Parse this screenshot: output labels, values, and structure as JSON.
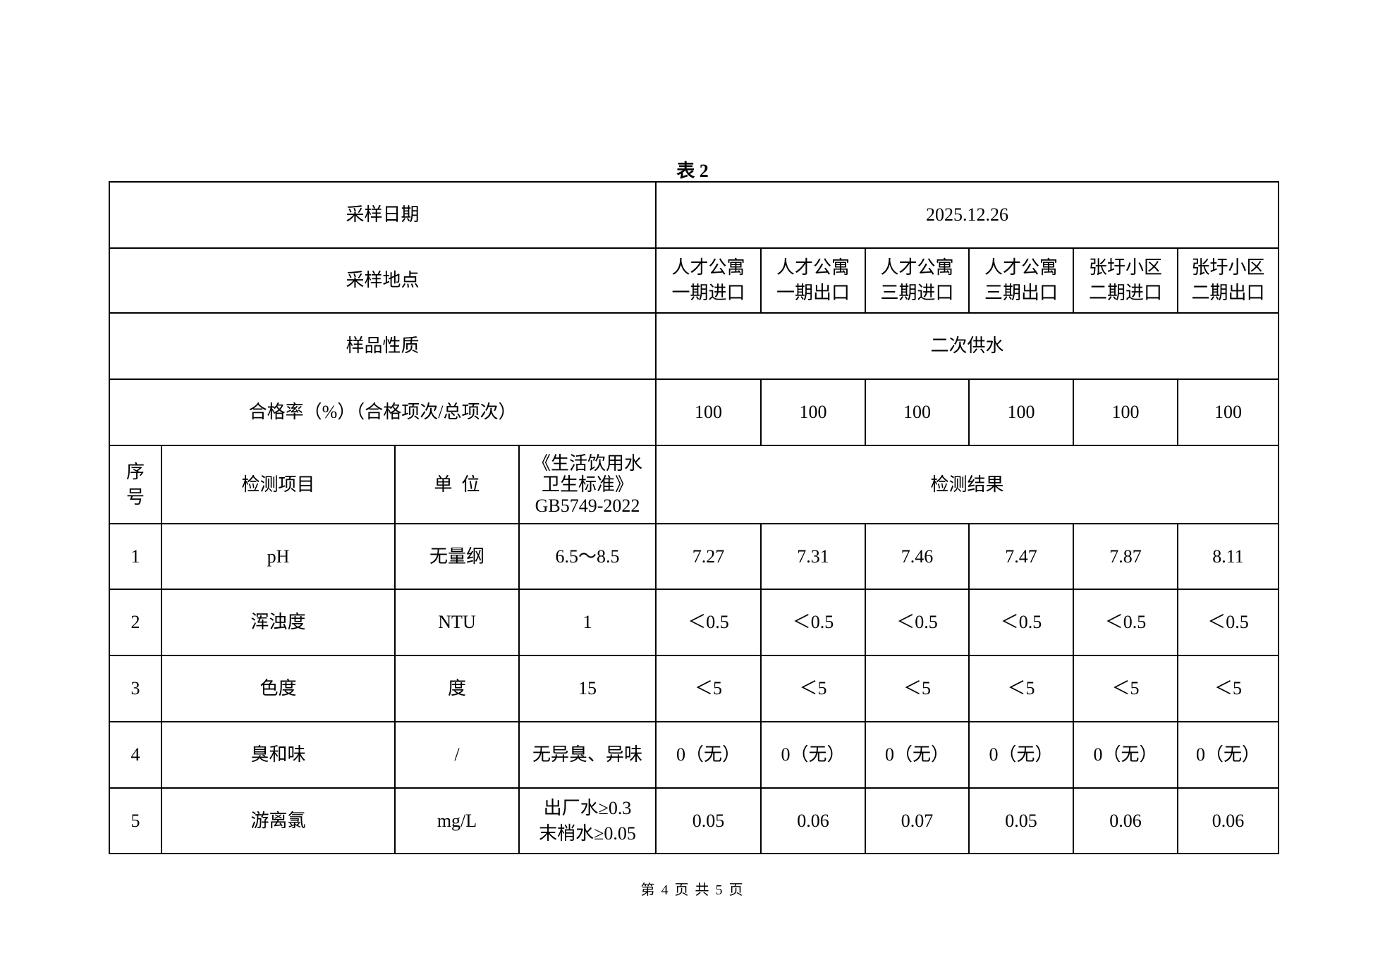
{
  "title": "表 2",
  "rows": {
    "date_label": "采样日期",
    "date_value": "2025.12.26",
    "location_label": "采样地点",
    "locations": [
      [
        "人才公寓",
        "一期进口"
      ],
      [
        "人才公寓",
        "一期出口"
      ],
      [
        "人才公寓",
        "三期进口"
      ],
      [
        "人才公寓",
        "三期出口"
      ],
      [
        "张圩小区",
        "二期进口"
      ],
      [
        "张圩小区",
        "二期出口"
      ]
    ],
    "nature_label": "样品性质",
    "nature_value": "二次供水",
    "pass_label": "合格率（%）（合格项次/总项次）",
    "pass_values": [
      "100",
      "100",
      "100",
      "100",
      "100",
      "100"
    ]
  },
  "header": {
    "no": [
      "序",
      "号"
    ],
    "item": "检测项目",
    "unit": "单  位",
    "standard": [
      "《生活饮用水",
      "卫生标准》",
      "GB5749-2022"
    ],
    "results": "检测结果"
  },
  "items": [
    {
      "no": "1",
      "name": "pH",
      "unit": "无量纲",
      "limit": [
        "6.5～8.5"
      ],
      "values": [
        "7.27",
        "7.31",
        "7.46",
        "7.47",
        "7.87",
        "8.11"
      ]
    },
    {
      "no": "2",
      "name": "浑浊度",
      "unit": "NTU",
      "limit": [
        "1"
      ],
      "values": [
        "＜0.5",
        "＜0.5",
        "＜0.5",
        "＜0.5",
        "＜0.5",
        "＜0.5"
      ]
    },
    {
      "no": "3",
      "name": "色度",
      "unit": "度",
      "limit": [
        "15"
      ],
      "values": [
        "＜5",
        "＜5",
        "＜5",
        "＜5",
        "＜5",
        "＜5"
      ]
    },
    {
      "no": "4",
      "name": "臭和味",
      "unit": "/",
      "limit": [
        "无异臭、异味"
      ],
      "values": [
        "0（无）",
        "0（无）",
        "0（无）",
        "0（无）",
        "0（无）",
        "0（无）"
      ]
    },
    {
      "no": "5",
      "name": "游离氯",
      "unit": "mg/L",
      "limit": [
        "出厂水≥0.3",
        "末梢水≥0.05"
      ],
      "values": [
        "0.05",
        "0.06",
        "0.07",
        "0.05",
        "0.06",
        "0.06"
      ]
    }
  ],
  "footer": "第 4 页 共 5 页"
}
